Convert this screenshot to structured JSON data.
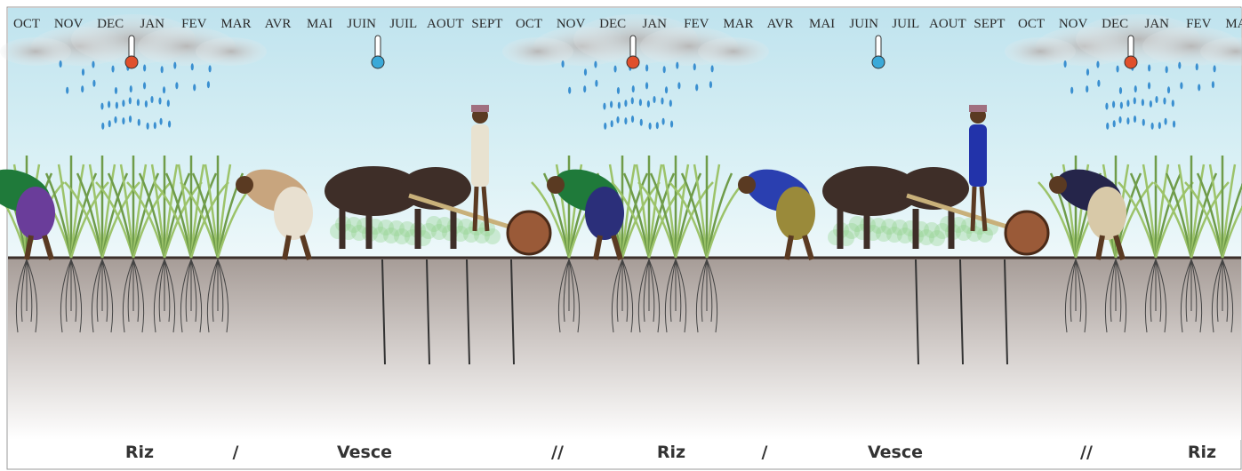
{
  "timeline": {
    "months": [
      "OCT",
      "NOV",
      "DEC",
      "JAN",
      "FEV",
      "MAR",
      "AVR",
      "MAI",
      "JUIN",
      "JUIL",
      "AOUT",
      "SEPT",
      "OCT",
      "NOV",
      "DEC",
      "JAN",
      "FEV",
      "MAR",
      "AVR",
      "MAI",
      "JUIN",
      "JUIL",
      "AOUT",
      "SEPT",
      "OCT",
      "NOV",
      "DEC",
      "JAN",
      "FEV",
      "MAR"
    ]
  },
  "crops": {
    "labels": [
      "Riz",
      "/",
      "Vesce",
      "//",
      "Riz",
      "/",
      "Vesce",
      "//",
      "Riz"
    ]
  }
}
